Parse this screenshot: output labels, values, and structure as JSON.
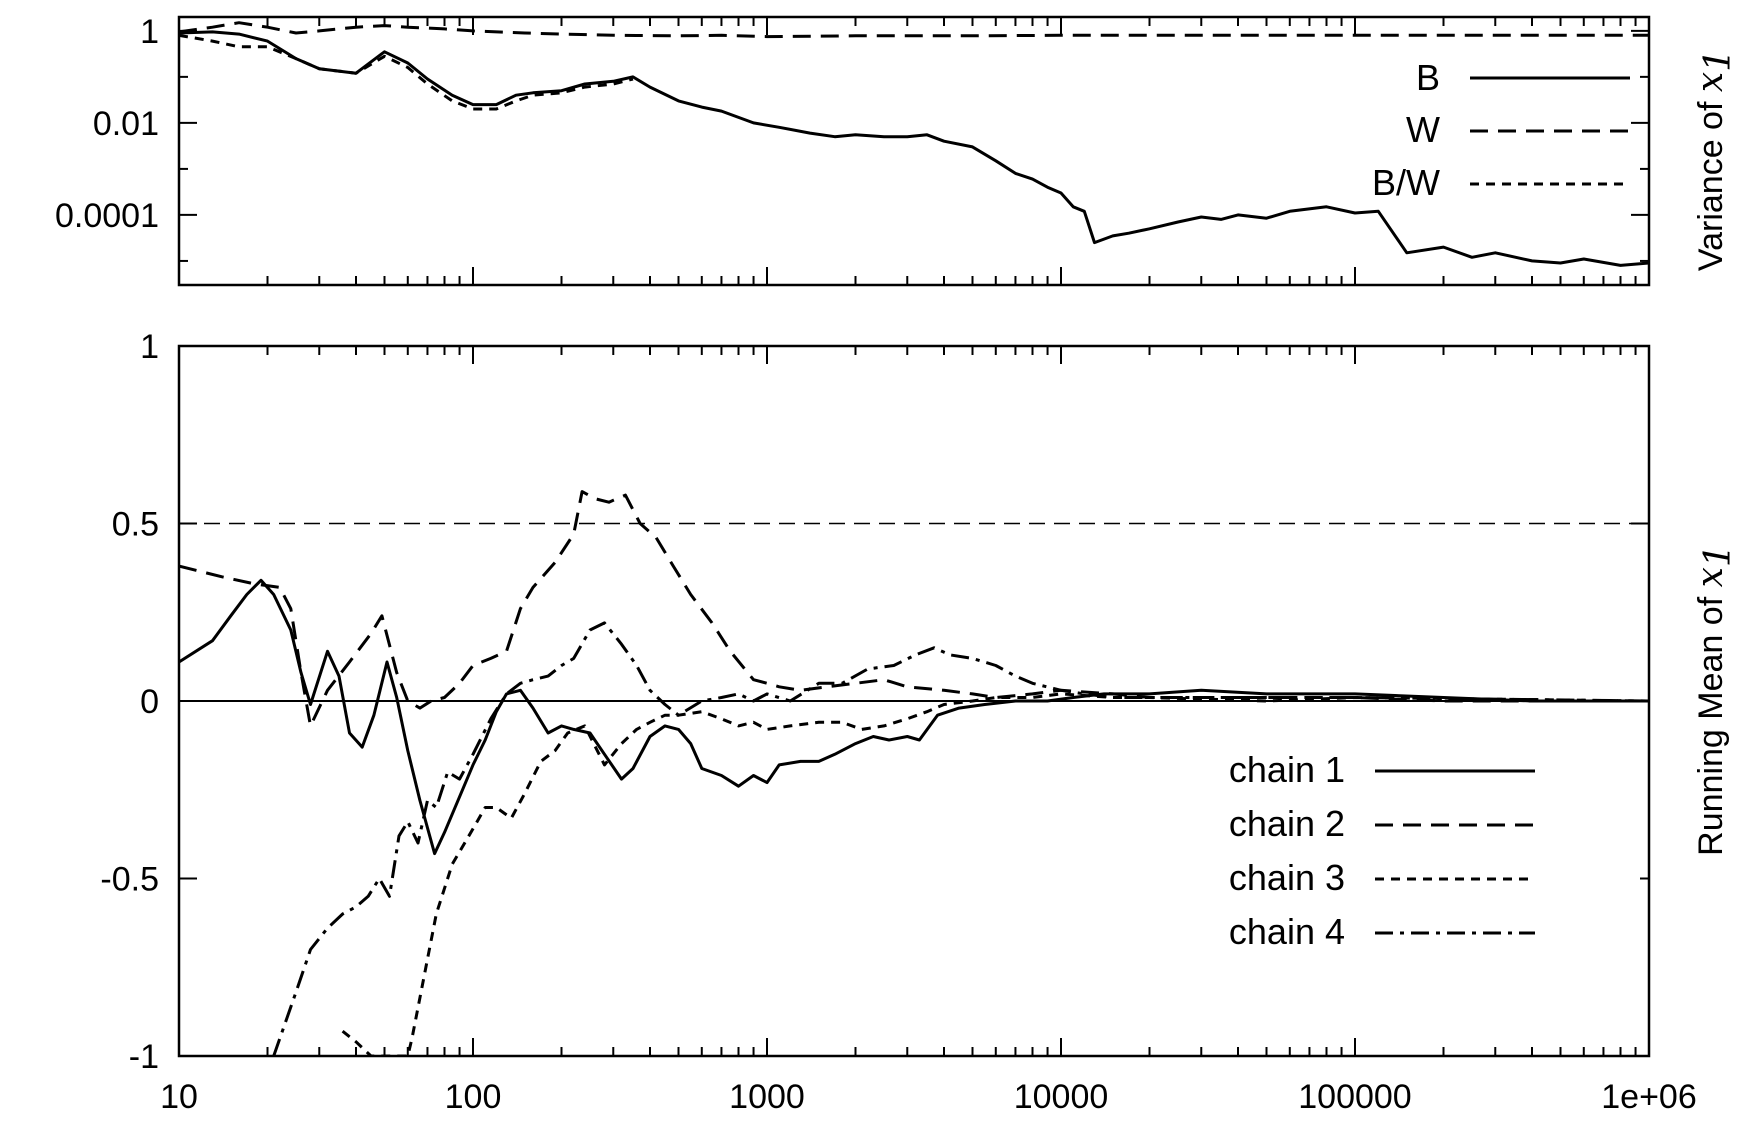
{
  "chart_data": [
    {
      "type": "line",
      "ylabel": "Variance of x",
      "ylabel_subscript": "1",
      "xscale": "log",
      "yscale": "log",
      "xlim": [
        10,
        1000000
      ],
      "ylim": [
        3e-06,
        2
      ],
      "yticks": [
        {
          "value": 1,
          "label": "1"
        },
        {
          "value": 0.01,
          "label": "0.01"
        },
        {
          "value": 0.0001,
          "label": "0.0001"
        }
      ],
      "legend_position": "top-right",
      "series": [
        {
          "name": "B",
          "style": "solid",
          "x": [
            10,
            13,
            16,
            20,
            25,
            30,
            40,
            50,
            60,
            70,
            85,
            100,
            120,
            140,
            160,
            200,
            240,
            300,
            350,
            400,
            500,
            600,
            700,
            900,
            1100,
            1400,
            1700,
            2000,
            2500,
            3000,
            3500,
            4000,
            5000,
            6000,
            7000,
            8000,
            9000,
            10000,
            11000,
            12000,
            13000,
            15000,
            17000,
            20000,
            25000,
            30000,
            35000,
            40000,
            50000,
            60000,
            80000,
            100000,
            120000,
            150000,
            200000,
            250000,
            300000,
            400000,
            500000,
            600000,
            800000,
            1000000
          ],
          "y": [
            0.9,
            0.95,
            0.85,
            0.6,
            0.25,
            0.15,
            0.12,
            0.35,
            0.2,
            0.09,
            0.04,
            0.025,
            0.025,
            0.04,
            0.045,
            0.05,
            0.07,
            0.08,
            0.1,
            0.06,
            0.03,
            0.022,
            0.018,
            0.01,
            0.008,
            0.006,
            0.005,
            0.0055,
            0.005,
            0.005,
            0.0055,
            0.004,
            0.003,
            0.0015,
            0.0008,
            0.0006,
            0.0004,
            0.0003,
            0.00015,
            0.00012,
            2.5e-05,
            3.5e-05,
            4e-05,
            5e-05,
            7e-05,
            9e-05,
            8e-05,
            0.0001,
            8.5e-05,
            0.00012,
            0.00015,
            0.00011,
            0.00012,
            1.5e-05,
            2e-05,
            1.2e-05,
            1.5e-05,
            1e-05,
            9e-06,
            1.1e-05,
            8e-06,
            9e-06
          ]
        },
        {
          "name": "W",
          "style": "dashed",
          "x": [
            10,
            13,
            16,
            20,
            25,
            30,
            40,
            50,
            60,
            80,
            100,
            150,
            200,
            300,
            500,
            700,
            1000,
            2000,
            5000,
            10000,
            100000,
            1000000
          ],
          "y": [
            0.95,
            1.2,
            1.5,
            1.2,
            0.9,
            1.0,
            1.2,
            1.3,
            1.2,
            1.1,
            1.0,
            0.9,
            0.85,
            0.8,
            0.78,
            0.8,
            0.75,
            0.78,
            0.78,
            0.8,
            0.8,
            0.8
          ]
        },
        {
          "name": "B/W",
          "style": "short-dashed",
          "x": [
            10,
            13,
            16,
            20,
            25,
            30,
            40,
            50,
            60,
            70,
            85,
            100,
            120,
            140,
            160,
            200,
            240,
            300,
            350
          ],
          "y": [
            0.8,
            0.6,
            0.45,
            0.45,
            0.25,
            0.15,
            0.12,
            0.28,
            0.16,
            0.07,
            0.03,
            0.02,
            0.02,
            0.03,
            0.04,
            0.045,
            0.06,
            0.07,
            0.09
          ]
        }
      ]
    },
    {
      "type": "line",
      "ylabel": "Running Mean of x",
      "ylabel_subscript": "1",
      "xscale": "log",
      "xlim": [
        10,
        1000000
      ],
      "ylim": [
        -1,
        1
      ],
      "yticks": [
        {
          "value": 1,
          "label": "1"
        },
        {
          "value": 0.5,
          "label": "0.5"
        },
        {
          "value": 0,
          "label": "0"
        },
        {
          "value": -0.5,
          "label": "-0.5"
        },
        {
          "value": -1,
          "label": "-1"
        }
      ],
      "xticks": [
        {
          "value": 10,
          "label": "10"
        },
        {
          "value": 100,
          "label": "100"
        },
        {
          "value": 1000,
          "label": "1000"
        },
        {
          "value": 10000,
          "label": "10000"
        },
        {
          "value": 100000,
          "label": "100000"
        },
        {
          "value": 1000000,
          "label": "1e+06"
        }
      ],
      "reference_lines": [
        {
          "y": 0.5,
          "style": "dashed"
        },
        {
          "y": 0,
          "style": "solid"
        }
      ],
      "legend_position": "bottom-right",
      "series": [
        {
          "name": "chain 1",
          "style": "solid",
          "x": [
            10,
            13,
            15,
            17,
            19,
            21,
            24,
            26,
            28,
            32,
            35,
            38,
            42,
            46,
            51,
            55,
            60,
            66,
            74,
            80,
            90,
            100,
            110,
            120,
            130,
            145,
            160,
            180,
            200,
            220,
            250,
            280,
            320,
            350,
            400,
            450,
            500,
            550,
            600,
            700,
            800,
            900,
            1000,
            1100,
            1300,
            1500,
            1700,
            2000,
            2300,
            2600,
            3000,
            3300,
            3800,
            4500,
            5500,
            7000,
            9000,
            11000,
            14000,
            20000,
            30000,
            50000,
            70000,
            100000,
            200000,
            400000,
            1000000
          ],
          "y": [
            0.11,
            0.17,
            0.24,
            0.3,
            0.34,
            0.3,
            0.2,
            0.08,
            -0.01,
            0.14,
            0.07,
            -0.09,
            -0.13,
            -0.04,
            0.11,
            0.01,
            -0.14,
            -0.28,
            -0.43,
            -0.37,
            -0.27,
            -0.18,
            -0.11,
            -0.03,
            0.02,
            0.03,
            -0.02,
            -0.09,
            -0.07,
            -0.08,
            -0.09,
            -0.15,
            -0.22,
            -0.19,
            -0.1,
            -0.07,
            -0.08,
            -0.12,
            -0.19,
            -0.21,
            -0.24,
            -0.21,
            -0.23,
            -0.18,
            -0.17,
            -0.17,
            -0.15,
            -0.12,
            -0.1,
            -0.11,
            -0.1,
            -0.11,
            -0.04,
            -0.02,
            -0.01,
            0.0,
            0.0,
            0.01,
            0.02,
            0.02,
            0.03,
            0.02,
            0.02,
            0.02,
            0.01,
            0.0,
            0.0
          ]
        },
        {
          "name": "chain 2",
          "style": "dashed",
          "x": [
            10,
            14,
            18,
            22,
            24,
            26,
            28,
            32,
            38,
            45,
            49,
            55,
            60,
            66,
            72,
            80,
            90,
            100,
            115,
            130,
            145,
            160,
            190,
            220,
            235,
            260,
            290,
            330,
            370,
            420,
            480,
            550,
            650,
            750,
            900,
            1000,
            1100,
            1300,
            1600,
            2000,
            2500,
            3000,
            4000,
            5000,
            6000,
            8000,
            10000,
            15000,
            20000,
            30000,
            50000,
            100000,
            200000,
            1000000
          ],
          "y": [
            0.38,
            0.35,
            0.33,
            0.32,
            0.26,
            0.08,
            -0.07,
            0.03,
            0.11,
            0.19,
            0.24,
            0.08,
            0.0,
            -0.02,
            0.0,
            0.01,
            0.05,
            0.1,
            0.12,
            0.14,
            0.26,
            0.32,
            0.39,
            0.47,
            0.59,
            0.57,
            0.56,
            0.58,
            0.5,
            0.46,
            0.38,
            0.3,
            0.22,
            0.14,
            0.06,
            0.05,
            0.04,
            0.03,
            0.04,
            0.05,
            0.06,
            0.04,
            0.03,
            0.02,
            0.01,
            0.02,
            0.03,
            0.02,
            0.01,
            0.01,
            0.01,
            0.01,
            0.0,
            0.0
          ]
        },
        {
          "name": "chain 3",
          "style": "short-dashed",
          "x": [
            36,
            40,
            45,
            60,
            62,
            68,
            75,
            85,
            100,
            110,
            120,
            135,
            150,
            170,
            190,
            210,
            240,
            280,
            320,
            360,
            400,
            450,
            500,
            600,
            700,
            800,
            900,
            1000,
            1200,
            1500,
            1800,
            2100,
            2500,
            3000,
            3500,
            4000,
            5000,
            6000,
            8000,
            10000,
            15000,
            20000,
            50000,
            100000,
            1000000
          ],
          "y": [
            -0.93,
            -0.96,
            -1.0,
            -1.0,
            -0.95,
            -0.78,
            -0.6,
            -0.46,
            -0.36,
            -0.3,
            -0.3,
            -0.33,
            -0.26,
            -0.17,
            -0.14,
            -0.09,
            -0.07,
            -0.18,
            -0.12,
            -0.08,
            -0.06,
            -0.04,
            -0.04,
            -0.03,
            -0.05,
            -0.07,
            -0.06,
            -0.08,
            -0.07,
            -0.06,
            -0.06,
            -0.08,
            -0.07,
            -0.05,
            -0.03,
            -0.01,
            0.0,
            0.01,
            0.01,
            0.02,
            0.01,
            0.01,
            0.0,
            0.01,
            0.0
          ]
        },
        {
          "name": "chain 4",
          "style": "dash-dot",
          "x": [
            21,
            25,
            28,
            32,
            36,
            40,
            44,
            48,
            52,
            56,
            60,
            65,
            70,
            75,
            82,
            90,
            100,
            115,
            130,
            145,
            160,
            180,
            200,
            220,
            250,
            280,
            320,
            360,
            400,
            450,
            500,
            600,
            700,
            800,
            900,
            1000,
            1200,
            1500,
            1800,
            2200,
            2700,
            3200,
            3700,
            4200,
            5000,
            6000,
            7000,
            8000,
            10000,
            12000,
            15000,
            20000,
            30000,
            50000,
            100000,
            1000000
          ],
          "y": [
            -1.0,
            -0.82,
            -0.7,
            -0.64,
            -0.6,
            -0.58,
            -0.55,
            -0.5,
            -0.55,
            -0.38,
            -0.34,
            -0.4,
            -0.28,
            -0.3,
            -0.2,
            -0.22,
            -0.15,
            -0.05,
            0.02,
            0.05,
            0.06,
            0.07,
            0.1,
            0.12,
            0.2,
            0.22,
            0.16,
            0.1,
            0.03,
            -0.01,
            -0.04,
            0.0,
            0.01,
            0.02,
            0.0,
            0.02,
            0.0,
            0.05,
            0.05,
            0.09,
            0.1,
            0.13,
            0.15,
            0.13,
            0.12,
            0.1,
            0.07,
            0.05,
            0.03,
            0.02,
            0.01,
            0.01,
            0.01,
            0.01,
            0.01,
            0.0
          ]
        }
      ]
    }
  ],
  "legend_top": [
    "B",
    "W",
    "B/W"
  ],
  "legend_bottom": [
    "chain 1",
    "chain 2",
    "chain 3",
    "chain 4"
  ],
  "axis_label_top": {
    "text": "Variance of ",
    "var": "x",
    "sub": "1"
  },
  "axis_label_bottom": {
    "text": "Running Mean of ",
    "var": "x",
    "sub": "1"
  }
}
